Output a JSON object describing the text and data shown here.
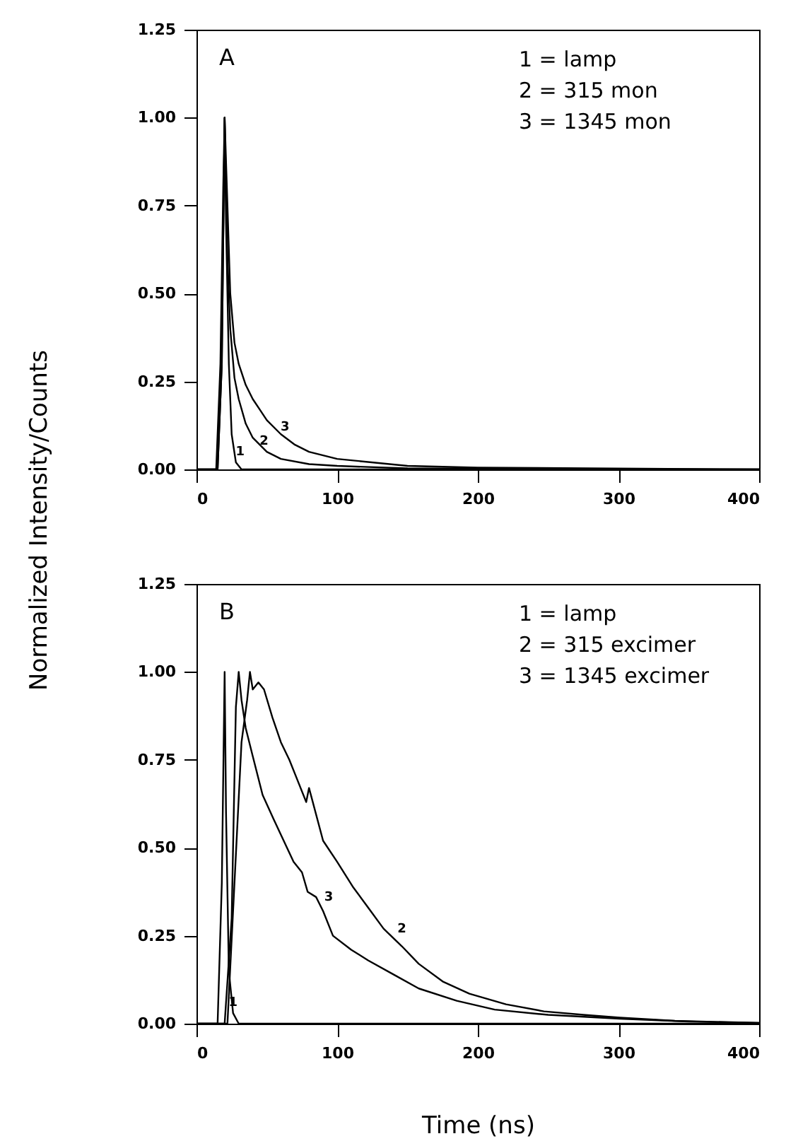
{
  "chart_data": [
    {
      "type": "line",
      "ylabel": "Normalized Intensity/Counts",
      "xlim": [
        0,
        400
      ],
      "xticks": [
        0,
        100,
        200,
        300,
        400
      ],
      "ylim": [
        0,
        1.25
      ],
      "yticks": [
        {
          "value": 0,
          "label": "0.00"
        },
        {
          "value": 0.25,
          "label": "0.25"
        },
        {
          "value": 0.5,
          "label": "0.50"
        },
        {
          "value": 0.75,
          "label": "0.75"
        },
        {
          "value": 1,
          "label": "1.00"
        },
        {
          "value": 1.25,
          "label": "1.25"
        }
      ],
      "annotations": [
        "A",
        "1 = lamp",
        "2 = 315 mon",
        "3 = 1345 mon",
        {
          "text": "1",
          "x": 31,
          "y": 0.02
        },
        {
          "text": "2",
          "x": 48,
          "y": 0.05
        },
        {
          "text": "3",
          "x": 63,
          "y": 0.09
        }
      ],
      "series": [
        {
          "color": "#000000",
          "x": [
            0,
            14,
            17,
            19,
            20,
            21,
            23,
            25,
            28,
            32,
            400
          ],
          "values": [
            0,
            0,
            0.3,
            0.8,
            1.0,
            0.7,
            0.3,
            0.1,
            0.02,
            0,
            0
          ]
        },
        {
          "color": "#000000",
          "x": [
            0,
            15,
            18,
            20,
            22,
            24,
            27,
            30,
            35,
            40,
            50,
            60,
            80,
            100,
            150,
            400
          ],
          "values": [
            0,
            0,
            0.3,
            1.0,
            0.6,
            0.4,
            0.26,
            0.2,
            0.13,
            0.09,
            0.05,
            0.03,
            0.015,
            0.01,
            0.003,
            0
          ]
        },
        {
          "color": "#000000",
          "x": [
            0,
            15,
            18,
            20,
            22,
            24,
            27,
            30,
            35,
            40,
            45,
            50,
            60,
            70,
            80,
            100,
            150,
            200,
            400
          ],
          "values": [
            0,
            0,
            0.3,
            1.0,
            0.75,
            0.5,
            0.36,
            0.3,
            0.24,
            0.2,
            0.17,
            0.14,
            0.1,
            0.07,
            0.05,
            0.03,
            0.01,
            0.005,
            0
          ]
        }
      ]
    },
    {
      "type": "line",
      "xlabel": "Time (ns)",
      "xlim": [
        0,
        400
      ],
      "xticks": [
        0,
        100,
        200,
        300,
        400
      ],
      "ylim": [
        0,
        1.25
      ],
      "yticks": [
        {
          "value": 0,
          "label": "0.00"
        },
        {
          "value": 0.25,
          "label": "0.25"
        },
        {
          "value": 0.5,
          "label": "0.50"
        },
        {
          "value": 0.75,
          "label": "0.75"
        },
        {
          "value": 1,
          "label": "1.00"
        },
        {
          "value": 1.25,
          "label": "1.25"
        }
      ],
      "annotations": [
        "B",
        "1 = lamp",
        "2 = 315 excimer",
        "3 = 1345 excimer",
        {
          "text": "1",
          "x": 26,
          "y": 0.03
        },
        {
          "text": "2",
          "x": 146,
          "y": 0.24
        },
        {
          "text": "3",
          "x": 94,
          "y": 0.33
        }
      ],
      "series": [
        {
          "color": "#000000",
          "x": [
            0,
            15,
            18,
            20,
            21,
            23,
            26,
            30,
            400
          ],
          "values": [
            0,
            0,
            0.4,
            1.0,
            0.6,
            0.15,
            0.03,
            0,
            0
          ]
        },
        {
          "color": "#000000",
          "x": [
            0,
            22,
            27,
            32,
            36,
            38,
            40,
            44,
            48,
            54,
            60,
            66,
            72,
            78,
            80,
            90,
            100,
            111,
            122,
            133,
            146,
            158,
            175,
            194,
            220,
            247,
            275,
            301,
            340,
            390,
            400
          ],
          "values": [
            0,
            0,
            0.4,
            0.8,
            0.92,
            1.0,
            0.95,
            0.97,
            0.95,
            0.87,
            0.8,
            0.75,
            0.69,
            0.63,
            0.67,
            0.52,
            0.46,
            0.39,
            0.33,
            0.27,
            0.22,
            0.17,
            0.12,
            0.085,
            0.055,
            0.035,
            0.025,
            0.017,
            0.008,
            0.003,
            0.002
          ]
        },
        {
          "color": "#000000",
          "x": [
            0,
            20,
            25,
            28,
            30,
            32,
            35,
            40,
            47,
            55,
            62,
            69,
            75,
            79,
            85,
            90,
            97,
            110,
            122,
            140,
            158,
            185,
            212,
            250,
            301,
            350,
            400
          ],
          "values": [
            0,
            0,
            0.3,
            0.9,
            1.0,
            0.92,
            0.84,
            0.76,
            0.65,
            0.58,
            0.52,
            0.46,
            0.43,
            0.375,
            0.36,
            0.32,
            0.25,
            0.21,
            0.18,
            0.14,
            0.1,
            0.065,
            0.04,
            0.025,
            0.014,
            0.006,
            0.002
          ]
        }
      ]
    }
  ]
}
